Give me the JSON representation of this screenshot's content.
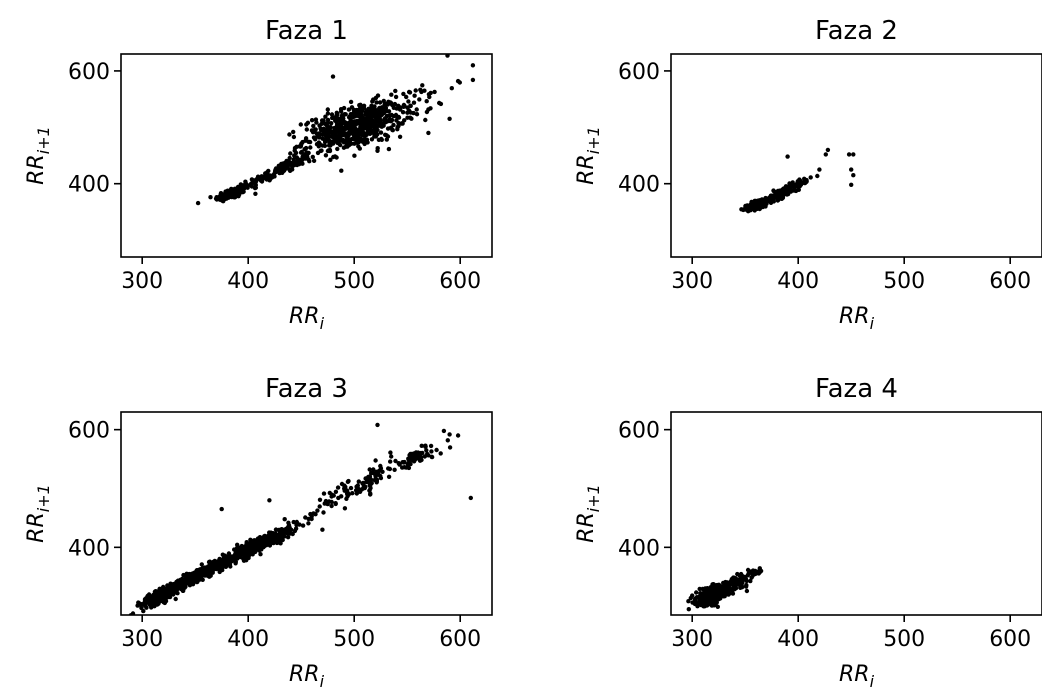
{
  "chart_data": [
    {
      "type": "scatter",
      "title": "Faza 1",
      "xlabel": {
        "base": "RR",
        "sub": "i"
      },
      "ylabel": {
        "base": "RR",
        "sub": "i+1"
      },
      "xlim": [
        280,
        630
      ],
      "ylim": [
        270,
        630
      ],
      "xticks": [
        300,
        400,
        500,
        600
      ],
      "yticks": [
        400,
        600
      ],
      "grid": false,
      "cluster_description": [
        {
          "cx": 385,
          "cy": 383,
          "sx": 8,
          "sy": 7,
          "n": 140,
          "corr": 0.7
        },
        {
          "cx": 430,
          "cy": 425,
          "sx": 15,
          "sy": 14,
          "n": 150,
          "corr": 0.92
        },
        {
          "cx": 500,
          "cy": 500,
          "sx": 24,
          "sy": 22,
          "n": 600,
          "corr": 0.55
        },
        {
          "cx": 555,
          "cy": 545,
          "sx": 20,
          "sy": 22,
          "n": 40,
          "corr": 0.6
        }
      ],
      "extra_points": [
        [
          598,
          582
        ],
        [
          612,
          610
        ],
        [
          612,
          584
        ],
        [
          590,
          515
        ],
        [
          570,
          490
        ],
        [
          480,
          590
        ]
      ]
    },
    {
      "type": "scatter",
      "title": "Faza 2",
      "xlabel": {
        "base": "RR",
        "sub": "i"
      },
      "ylabel": {
        "base": "RR",
        "sub": "i+1"
      },
      "xlim": [
        280,
        630
      ],
      "ylim": [
        270,
        630
      ],
      "xticks": [
        300,
        400,
        500,
        600
      ],
      "yticks": [
        400,
        600
      ],
      "grid": false,
      "cluster_description": [
        {
          "cx": 362,
          "cy": 363,
          "sx": 5,
          "sy": 5,
          "n": 180,
          "corr": 0.6
        },
        {
          "cx": 382,
          "cy": 382,
          "sx": 9,
          "sy": 9,
          "n": 120,
          "corr": 0.85
        },
        {
          "cx": 402,
          "cy": 400,
          "sx": 5,
          "sy": 6,
          "n": 30,
          "corr": 0.6
        }
      ],
      "extra_points": [
        [
          428,
          460
        ],
        [
          426,
          452
        ],
        [
          448,
          452
        ],
        [
          452,
          452
        ],
        [
          450,
          425
        ],
        [
          452,
          415
        ],
        [
          450,
          398
        ],
        [
          390,
          448
        ],
        [
          420,
          425
        ]
      ]
    },
    {
      "type": "scatter",
      "title": "Faza 3",
      "xlabel": {
        "base": "RR",
        "sub": "i"
      },
      "ylabel": {
        "base": "RR",
        "sub": "i+1"
      },
      "xlim": [
        280,
        630
      ],
      "ylim": [
        285,
        630
      ],
      "xticks": [
        300,
        400,
        500,
        600
      ],
      "yticks": [
        400,
        600
      ],
      "grid": false,
      "cluster_description": [
        {
          "cx": 315,
          "cy": 315,
          "sx": 8,
          "sy": 8,
          "n": 250,
          "corr": 0.75
        },
        {
          "cx": 355,
          "cy": 355,
          "sx": 14,
          "sy": 14,
          "n": 400,
          "corr": 0.93
        },
        {
          "cx": 410,
          "cy": 405,
          "sx": 18,
          "sy": 17,
          "n": 350,
          "corr": 0.93
        },
        {
          "cx": 505,
          "cy": 505,
          "sx": 22,
          "sy": 22,
          "n": 110,
          "corr": 0.88
        },
        {
          "cx": 560,
          "cy": 555,
          "sx": 12,
          "sy": 12,
          "n": 60,
          "corr": 0.8
        }
      ],
      "extra_points": [
        [
          610,
          484
        ],
        [
          598,
          590
        ],
        [
          590,
          592
        ],
        [
          522,
          608
        ],
        [
          375,
          465
        ],
        [
          420,
          480
        ],
        [
          470,
          430
        ]
      ]
    },
    {
      "type": "scatter",
      "title": "Faza 4",
      "xlabel": {
        "base": "RR",
        "sub": "i"
      },
      "ylabel": {
        "base": "RR",
        "sub": "i+1"
      },
      "xlim": [
        280,
        630
      ],
      "ylim": [
        285,
        630
      ],
      "xticks": [
        300,
        400,
        500,
        600
      ],
      "yticks": [
        400,
        600
      ],
      "grid": false,
      "cluster_description": [
        {
          "cx": 318,
          "cy": 318,
          "sx": 7,
          "sy": 8,
          "n": 380,
          "corr": 0.45
        },
        {
          "cx": 340,
          "cy": 338,
          "sx": 7,
          "sy": 7,
          "n": 90,
          "corr": 0.6
        },
        {
          "cx": 358,
          "cy": 356,
          "sx": 4,
          "sy": 4,
          "n": 20,
          "corr": 0.5
        }
      ],
      "extra_points": [
        [
          300,
          318
        ],
        [
          305,
          300
        ],
        [
          365,
          360
        ]
      ]
    }
  ]
}
